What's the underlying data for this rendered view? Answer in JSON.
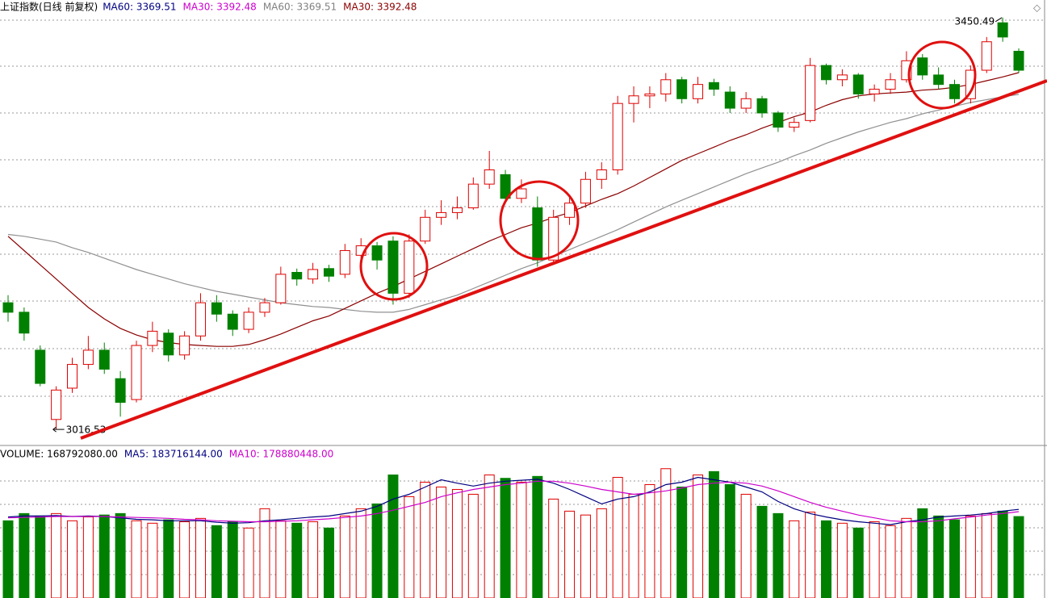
{
  "chart_data": [
    {
      "type": "candlestick",
      "title": "上证指数(日线 前复权)",
      "legend": [
        {
          "label": "MA60: 3369.51",
          "color": "#000080"
        },
        {
          "label": "MA30: 3392.48",
          "color": "#cc00cc"
        },
        {
          "label": "MA60: 3369.51",
          "color": "#808080"
        },
        {
          "label": "MA30: 3392.48",
          "color": "#8b0000"
        }
      ],
      "up_color": "#e00000",
      "down_color": "#008000",
      "ylim": [
        3003,
        3469
      ],
      "ohlc": [
        [
          3150,
          3158,
          3130,
          3140
        ],
        [
          3140,
          3145,
          3110,
          3118
        ],
        [
          3100,
          3105,
          3062,
          3065
        ],
        [
          3027,
          3062,
          3016.53,
          3058
        ],
        [
          3060,
          3092,
          3055,
          3085
        ],
        [
          3085,
          3115,
          3080,
          3100
        ],
        [
          3100,
          3108,
          3075,
          3080
        ],
        [
          3070,
          3078,
          3030,
          3045
        ],
        [
          3048,
          3110,
          3045,
          3105
        ],
        [
          3105,
          3130,
          3098,
          3120
        ],
        [
          3118,
          3122,
          3088,
          3095
        ],
        [
          3095,
          3120,
          3090,
          3115
        ],
        [
          3115,
          3160,
          3110,
          3150
        ],
        [
          3150,
          3158,
          3130,
          3138
        ],
        [
          3138,
          3142,
          3115,
          3122
        ],
        [
          3122,
          3145,
          3118,
          3140
        ],
        [
          3140,
          3155,
          3135,
          3150
        ],
        [
          3150,
          3188,
          3148,
          3180
        ],
        [
          3182,
          3186,
          3168,
          3175
        ],
        [
          3175,
          3192,
          3170,
          3185
        ],
        [
          3186,
          3190,
          3172,
          3178
        ],
        [
          3180,
          3212,
          3176,
          3205
        ],
        [
          3200,
          3218,
          3195,
          3210
        ],
        [
          3210,
          3214,
          3185,
          3195
        ],
        [
          3215,
          3220,
          3148,
          3160
        ],
        [
          3160,
          3222,
          3155,
          3215
        ],
        [
          3215,
          3248,
          3212,
          3240
        ],
        [
          3240,
          3258,
          3232,
          3245
        ],
        [
          3245,
          3262,
          3238,
          3250
        ],
        [
          3250,
          3282,
          3248,
          3275
        ],
        [
          3275,
          3310,
          3270,
          3290
        ],
        [
          3285,
          3290,
          3255,
          3260
        ],
        [
          3260,
          3280,
          3255,
          3270
        ],
        [
          3250,
          3262,
          3188,
          3195
        ],
        [
          3195,
          3248,
          3190,
          3240
        ],
        [
          3240,
          3262,
          3232,
          3255
        ],
        [
          3255,
          3288,
          3250,
          3280
        ],
        [
          3280,
          3298,
          3270,
          3290
        ],
        [
          3290,
          3368,
          3285,
          3360
        ],
        [
          3360,
          3378,
          3340,
          3368
        ],
        [
          3368,
          3378,
          3355,
          3370
        ],
        [
          3370,
          3392,
          3362,
          3385
        ],
        [
          3385,
          3388,
          3360,
          3365
        ],
        [
          3365,
          3388,
          3360,
          3380
        ],
        [
          3382,
          3386,
          3368,
          3375
        ],
        [
          3372,
          3378,
          3350,
          3355
        ],
        [
          3355,
          3372,
          3350,
          3365
        ],
        [
          3365,
          3368,
          3345,
          3350
        ],
        [
          3350,
          3352,
          3330,
          3335
        ],
        [
          3335,
          3345,
          3330,
          3340
        ],
        [
          3342,
          3408,
          3340,
          3400
        ],
        [
          3400,
          3402,
          3380,
          3385
        ],
        [
          3385,
          3396,
          3378,
          3390
        ],
        [
          3390,
          3392,
          3365,
          3370
        ],
        [
          3370,
          3380,
          3362,
          3375
        ],
        [
          3375,
          3392,
          3370,
          3385
        ],
        [
          3385,
          3415,
          3382,
          3405
        ],
        [
          3408,
          3412,
          3385,
          3390
        ],
        [
          3390,
          3398,
          3375,
          3380
        ],
        [
          3380,
          3385,
          3360,
          3365
        ],
        [
          3365,
          3400,
          3360,
          3395
        ],
        [
          3395,
          3430,
          3392,
          3425
        ],
        [
          3445,
          3450.49,
          3425,
          3430
        ],
        [
          3415,
          3418,
          3392,
          3395
        ]
      ],
      "series": [
        {
          "name": "MA60",
          "color": "#909090",
          "values": [
            3222,
            3220,
            3217,
            3214,
            3208,
            3203,
            3197,
            3191,
            3185,
            3180,
            3175,
            3170,
            3166,
            3162,
            3159,
            3156,
            3153,
            3150,
            3148,
            3146,
            3145,
            3143,
            3141,
            3140,
            3140,
            3143,
            3148,
            3153,
            3158,
            3165,
            3172,
            3179,
            3186,
            3192,
            3199,
            3206,
            3213,
            3220,
            3227,
            3235,
            3243,
            3251,
            3258,
            3265,
            3272,
            3279,
            3286,
            3292,
            3298,
            3305,
            3311,
            3318,
            3324,
            3330,
            3335,
            3340,
            3344,
            3349,
            3353,
            3357,
            3361,
            3364,
            3367,
            3369.51
          ]
        },
        {
          "name": "MA30",
          "color": "#8b0000",
          "values": [
            3220,
            3205,
            3190,
            3175,
            3160,
            3145,
            3133,
            3123,
            3116,
            3111,
            3108,
            3106,
            3105,
            3104,
            3104,
            3106,
            3111,
            3117,
            3124,
            3131,
            3136,
            3144,
            3152,
            3160,
            3167,
            3175,
            3183,
            3191,
            3199,
            3207,
            3215,
            3222,
            3229,
            3234,
            3240,
            3245,
            3252,
            3259,
            3265,
            3273,
            3282,
            3291,
            3300,
            3307,
            3314,
            3321,
            3327,
            3334,
            3340,
            3346,
            3351,
            3358,
            3364,
            3368,
            3370,
            3371,
            3372,
            3374,
            3375,
            3377,
            3380,
            3384,
            3388,
            3392.48
          ]
        }
      ]
    },
    {
      "type": "bar",
      "legend": [
        {
          "label": "VOLUME: 168792080.00",
          "color": "#000000"
        },
        {
          "label": "MA5: 183716144.00",
          "color": "#000080"
        },
        {
          "label": "MA10: 178880448.00",
          "color": "#cc00cc"
        }
      ],
      "ylim": [
        0,
        286000000.0
      ],
      "values": [
        160000000.0,
        175000000.0,
        170000000.0,
        175000000.0,
        160000000.0,
        168000000.0,
        172000000.0,
        175000000.0,
        160000000.0,
        155000000.0,
        162000000.0,
        158000000.0,
        165000000.0,
        150000000.0,
        158000000.0,
        145000000.0,
        185000000.0,
        160000000.0,
        155000000.0,
        158000000.0,
        145000000.0,
        170000000.0,
        185000000.0,
        195000000.0,
        255000000.0,
        210000000.0,
        240000000.0,
        230000000.0,
        225000000.0,
        215000000.0,
        255000000.0,
        248000000.0,
        240000000.0,
        252000000.0,
        205000000.0,
        180000000.0,
        172000000.0,
        185000000.0,
        250000000.0,
        215000000.0,
        235000000.0,
        268000000.0,
        230000000.0,
        255000000.0,
        262000000.0,
        235000000.0,
        215000000.0,
        190000000.0,
        175000000.0,
        160000000.0,
        178000000.0,
        160000000.0,
        155000000.0,
        145000000.0,
        158000000.0,
        150000000.0,
        165000000.0,
        185000000.0,
        170000000.0,
        162000000.0,
        170000000.0,
        175000000.0,
        180000000.0,
        168792080
      ],
      "series": [
        {
          "name": "MA5",
          "color": "#000080",
          "values": [
            168000000.0,
            170000000.0,
            170000000.0,
            171000000.0,
            169000000.0,
            170000000.0,
            169000000.0,
            166000000.0,
            163000000.0,
            162000000.0,
            160000000.0,
            160000000.0,
            160000000.0,
            157000000.0,
            155000000.0,
            156000000.0,
            160000000.0,
            162000000.0,
            165000000.0,
            168000000.0,
            170000000.0,
            175000000.0,
            180000000.0,
            190000000.0,
            205000000.0,
            215000000.0,
            230000000.0,
            245000000.0,
            238000000.0,
            232000000.0,
            238000000.0,
            242000000.0,
            244000000.0,
            246000000.0,
            238000000.0,
            225000000.0,
            210000000.0,
            195000000.0,
            205000000.0,
            210000000.0,
            220000000.0,
            235000000.0,
            240000000.0,
            250000000.0,
            245000000.0,
            240000000.0,
            230000000.0,
            220000000.0,
            200000000.0,
            185000000.0,
            175000000.0,
            168000000.0,
            162000000.0,
            158000000.0,
            155000000.0,
            152000000.0,
            158000000.0,
            162000000.0,
            168000000.0,
            170000000.0,
            172000000.0,
            175000000.0,
            180000000.0,
            183716144
          ]
        },
        {
          "name": "MA10",
          "color": "#cc00cc",
          "values": [
            166000000.0,
            167000000.0,
            168000000.0,
            169000000.0,
            169000000.0,
            169000000.0,
            169000000.0,
            168000000.0,
            167000000.0,
            166000000.0,
            165000000.0,
            163000000.0,
            162000000.0,
            160000000.0,
            159000000.0,
            158000000.0,
            158000000.0,
            159000000.0,
            160000000.0,
            162000000.0,
            164000000.0,
            167000000.0,
            170000000.0,
            175000000.0,
            182000000.0,
            190000000.0,
            198000000.0,
            210000000.0,
            218000000.0,
            225000000.0,
            230000000.0,
            235000000.0,
            238000000.0,
            242000000.0,
            242000000.0,
            238000000.0,
            232000000.0,
            225000000.0,
            220000000.0,
            215000000.0,
            218000000.0,
            222000000.0,
            228000000.0,
            235000000.0,
            238000000.0,
            240000000.0,
            238000000.0,
            232000000.0,
            222000000.0,
            210000000.0,
            198000000.0,
            188000000.0,
            180000000.0,
            172000000.0,
            166000000.0,
            160000000.0,
            158000000.0,
            158000000.0,
            160000000.0,
            164000000.0,
            168000000.0,
            172000000.0,
            175000000.0,
            178880448
          ]
        }
      ]
    }
  ]
}
